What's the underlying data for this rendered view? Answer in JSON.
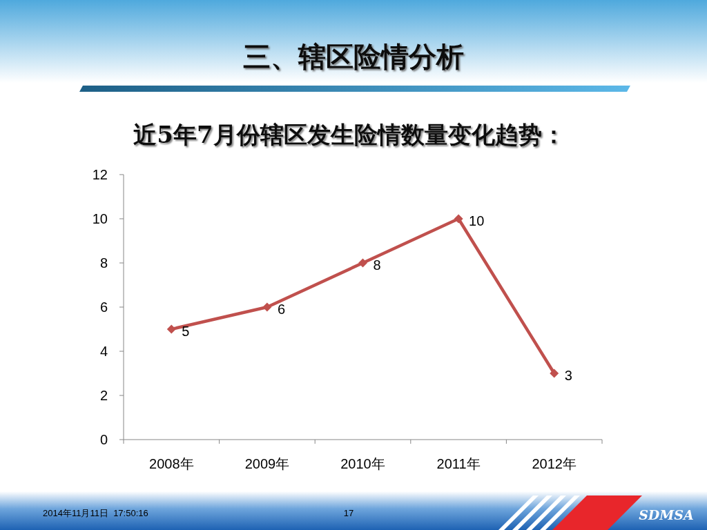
{
  "chart_data": {
    "type": "line",
    "title": "三、辖区险情分析",
    "subtitle": "近5年7月份辖区发生险情数量变化趋势：",
    "categories": [
      "2008年",
      "2009年",
      "2010年",
      "2011年",
      "2012年"
    ],
    "series": [
      {
        "color": "#c0504d",
        "values": [
          5,
          6,
          8,
          10,
          3
        ]
      }
    ],
    "ylim": [
      0,
      12
    ],
    "yticks": [
      0,
      2,
      4,
      6,
      8,
      10,
      12
    ],
    "marker": "diamond",
    "line_style": "solid",
    "data_labels": true,
    "annotations": [
      "2014年11月11日  17:50:16",
      "17",
      "SDMSA"
    ]
  }
}
